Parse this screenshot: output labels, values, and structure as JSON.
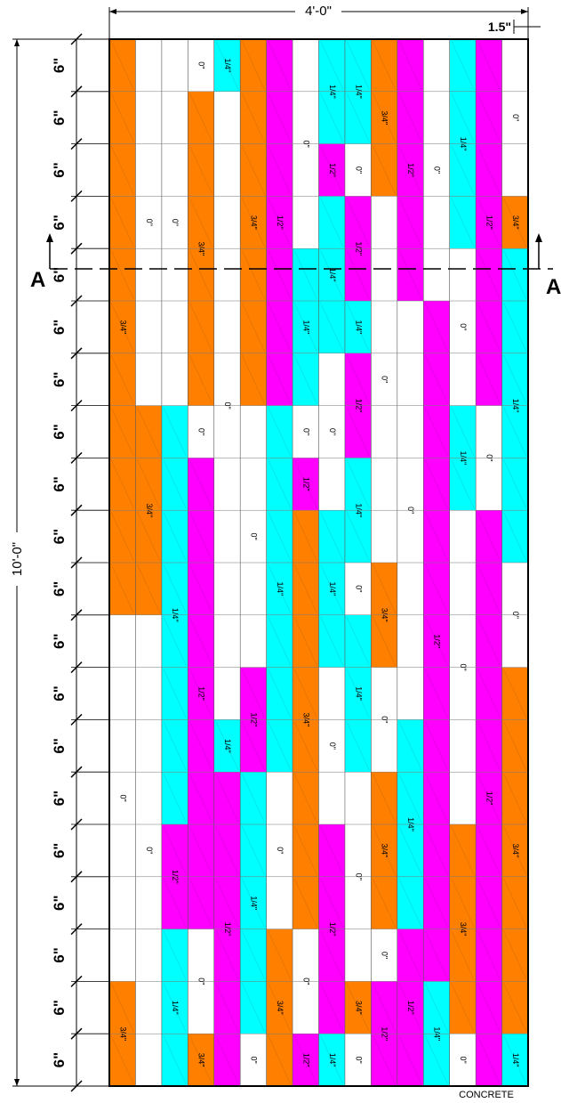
{
  "dimensions": {
    "width_label": "4'-0\"",
    "height_label": "10'-0\"",
    "strip_label": "1.5\""
  },
  "row_label": "6\"",
  "section": {
    "left": "A",
    "right": "A"
  },
  "footer": "CONCRETE",
  "colors": {
    "0\"": "#ffffff",
    "1/4\"": "#00ffff",
    "1/2\"": "#ff00ff",
    "3/4\"": "#ff8000"
  },
  "legend_values": [
    "0\"",
    "1/4\"",
    "1/2\"",
    "3/4\""
  ],
  "board_grid": {
    "columns": 16,
    "rows": 20,
    "column_width_in": 1.5,
    "row_height_in": 6,
    "cells": [
      [
        "3/4\"",
        "0\"",
        "0\"",
        "0\"",
        "1/4\"",
        "3/4\"",
        "1/2\"",
        "0\"",
        "1/4\"",
        "1/4\"",
        "3/4\"",
        "1/2\"",
        "0\"",
        "1/4\"",
        "1/2\"",
        "0\""
      ],
      [
        "3/4\"",
        "0\"",
        "0\"",
        "3/4\"",
        "0\"",
        "3/4\"",
        "1/2\"",
        "0\"",
        "1/4\"",
        "1/4\"",
        "3/4\"",
        "1/2\"",
        "0\"",
        "1/4\"",
        "1/2\"",
        "0\""
      ],
      [
        "3/4\"",
        "0\"",
        "0\"",
        "3/4\"",
        "0\"",
        "3/4\"",
        "1/2\"",
        "0\"",
        "1/2\"",
        "0\"",
        "3/4\"",
        "1/2\"",
        "0\"",
        "1/4\"",
        "1/2\"",
        "0\""
      ],
      [
        "3/4\"",
        "0\"",
        "0\"",
        "3/4\"",
        "0\"",
        "3/4\"",
        "1/2\"",
        "0\"",
        "1/4\"",
        "1/2\"",
        "0\"",
        "1/2\"",
        "0\"",
        "1/4\"",
        "1/2\"",
        "3/4\""
      ],
      [
        "3/4\"",
        "0\"",
        "0\"",
        "3/4\"",
        "0\"",
        "3/4\"",
        "1/2\"",
        "1/4\"",
        "1/4\"",
        "1/2\"",
        "0\"",
        "1/2\"",
        "0\"",
        "0\"",
        "1/2\"",
        "1/4\""
      ],
      [
        "3/4\"",
        "0\"",
        "0\"",
        "3/4\"",
        "0\"",
        "3/4\"",
        "1/2\"",
        "1/4\"",
        "1/4\"",
        "1/4\"",
        "0\"",
        "0\"",
        "1/2\"",
        "0\"",
        "1/2\"",
        "1/4\""
      ],
      [
        "3/4\"",
        "0\"",
        "0\"",
        "3/4\"",
        "0\"",
        "3/4\"",
        "1/2\"",
        "1/4\"",
        "0\"",
        "1/2\"",
        "0\"",
        "0\"",
        "1/2\"",
        "0\"",
        "1/2\"",
        "1/4\""
      ],
      [
        "3/4\"",
        "3/4\"",
        "1/4\"",
        "0\"",
        "0\"",
        "0\"",
        "1/4\"",
        "0\"",
        "0\"",
        "1/2\"",
        "0\"",
        "0\"",
        "1/2\"",
        "1/4\"",
        "0\"",
        "1/4\""
      ],
      [
        "3/4\"",
        "3/4\"",
        "1/4\"",
        "1/2\"",
        "0\"",
        "0\"",
        "1/4\"",
        "1/2\"",
        "0\"",
        "1/4\"",
        "0\"",
        "0\"",
        "1/2\"",
        "1/4\"",
        "0\"",
        "1/4\""
      ],
      [
        "3/4\"",
        "3/4\"",
        "1/4\"",
        "1/2\"",
        "0\"",
        "0\"",
        "1/4\"",
        "3/4\"",
        "1/4\"",
        "1/4\"",
        "0\"",
        "0\"",
        "1/2\"",
        "0\"",
        "1/2\"",
        "1/4\""
      ],
      [
        "3/4\"",
        "3/4\"",
        "1/4\"",
        "1/2\"",
        "0\"",
        "0\"",
        "1/4\"",
        "3/4\"",
        "1/4\"",
        "0\"",
        "3/4\"",
        "0\"",
        "1/2\"",
        "0\"",
        "1/2\"",
        "0\""
      ],
      [
        "0\"",
        "0\"",
        "1/4\"",
        "1/2\"",
        "0\"",
        "0\"",
        "1/4\"",
        "3/4\"",
        "1/4\"",
        "1/4\"",
        "3/4\"",
        "0\"",
        "1/2\"",
        "0\"",
        "1/2\"",
        "0\""
      ],
      [
        "0\"",
        "0\"",
        "1/4\"",
        "1/2\"",
        "0\"",
        "1/2\"",
        "1/4\"",
        "3/4\"",
        "0\"",
        "1/4\"",
        "0\"",
        "0\"",
        "1/2\"",
        "0\"",
        "1/2\"",
        "3/4\""
      ],
      [
        "0\"",
        "0\"",
        "1/4\"",
        "1/2\"",
        "1/4\"",
        "1/2\"",
        "1/4\"",
        "3/4\"",
        "0\"",
        "1/4\"",
        "0\"",
        "1/4\"",
        "1/2\"",
        "0\"",
        "1/2\"",
        "3/4\""
      ],
      [
        "0\"",
        "0\"",
        "1/4\"",
        "1/2\"",
        "1/2\"",
        "1/4\"",
        "0\"",
        "3/4\"",
        "0\"",
        "0\"",
        "3/4\"",
        "1/4\"",
        "1/2\"",
        "0\"",
        "1/2\"",
        "3/4\""
      ],
      [
        "0\"",
        "0\"",
        "1/2\"",
        "1/2\"",
        "1/2\"",
        "1/4\"",
        "0\"",
        "3/4\"",
        "1/2\"",
        "0\"",
        "3/4\"",
        "1/4\"",
        "1/2\"",
        "3/4\"",
        "1/2\"",
        "3/4\""
      ],
      [
        "0\"",
        "0\"",
        "1/2\"",
        "1/2\"",
        "1/2\"",
        "1/4\"",
        "0\"",
        "3/4\"",
        "1/2\"",
        "0\"",
        "3/4\"",
        "1/4\"",
        "1/2\"",
        "3/4\"",
        "1/2\"",
        "3/4\""
      ],
      [
        "0\"",
        "0\"",
        "1/4\"",
        "0\"",
        "1/2\"",
        "1/4\"",
        "3/4\"",
        "0\"",
        "1/2\"",
        "0\"",
        "0\"",
        "1/2\"",
        "1/2\"",
        "3/4\"",
        "1/2\"",
        "3/4\""
      ],
      [
        "3/4\"",
        "0\"",
        "1/4\"",
        "0\"",
        "1/2\"",
        "1/4\"",
        "3/4\"",
        "0\"",
        "1/2\"",
        "3/4\"",
        "1/2\"",
        "1/2\"",
        "1/4\"",
        "3/4\"",
        "1/2\"",
        "3/4\""
      ],
      [
        "3/4\"",
        "0\"",
        "1/4\"",
        "3/4\"",
        "1/2\"",
        "0\"",
        "3/4\"",
        "1/2\"",
        "1/4\"",
        "0\"",
        "1/2\"",
        "1/2\"",
        "1/4\"",
        "0\"",
        "1/2\"",
        "1/4\""
      ]
    ]
  }
}
